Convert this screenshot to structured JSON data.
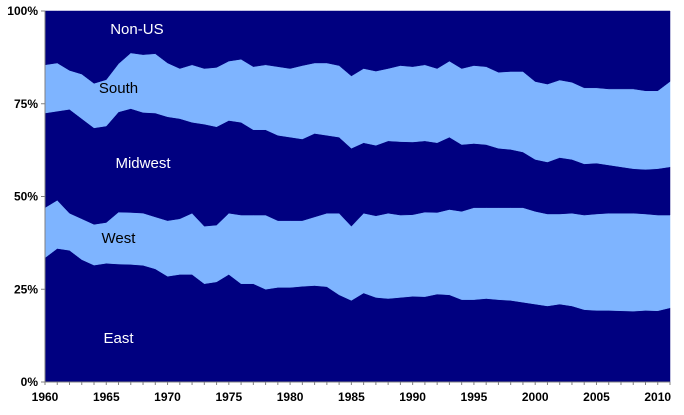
{
  "chart_data": {
    "type": "area",
    "stacked": true,
    "normalized_percent": true,
    "title": "",
    "xlabel": "",
    "ylabel": "",
    "x": [
      1960,
      1961,
      1962,
      1963,
      1964,
      1965,
      1966,
      1967,
      1968,
      1969,
      1970,
      1971,
      1972,
      1973,
      1974,
      1975,
      1976,
      1977,
      1978,
      1979,
      1980,
      1981,
      1982,
      1983,
      1984,
      1985,
      1986,
      1987,
      1988,
      1989,
      1990,
      1991,
      1992,
      1993,
      1994,
      1995,
      1996,
      1997,
      1998,
      1999,
      2000,
      2001,
      2002,
      2003,
      2004,
      2005,
      2006,
      2007,
      2008,
      2009,
      2010,
      2011
    ],
    "xlim": [
      1960,
      2011
    ],
    "ylim": [
      0,
      100
    ],
    "x_ticks": [
      "1960",
      "1965",
      "1970",
      "1975",
      "1980",
      "1985",
      "1990",
      "1995",
      "2000",
      "2005",
      "2010"
    ],
    "y_ticks": [
      "0%",
      "25%",
      "50%",
      "75%",
      "100%"
    ],
    "grid": false,
    "legend": "none",
    "series": [
      {
        "name": "East",
        "color": "#000080",
        "label_color": "#ffffff",
        "values": [
          33.5,
          36,
          35.5,
          33,
          31.5,
          32,
          31.8,
          31.7,
          31.3,
          30.5,
          28.5,
          29,
          29,
          26.5,
          27,
          29,
          26.5,
          26.5,
          25,
          25.5,
          25.5,
          25.8,
          26,
          25.7,
          23.5,
          22,
          24,
          22.8,
          22.5,
          22.8,
          23.1,
          23,
          23.7,
          23.5,
          22.2,
          22.2,
          22.5,
          22.2,
          22,
          21.5,
          21,
          20.5,
          21,
          20.5,
          19.5,
          19.3,
          19.3,
          19.2,
          19.1,
          19.3,
          19.2,
          20
        ]
      },
      {
        "name": "West",
        "color": "#7eb4ff",
        "label_color": "#000000",
        "values": [
          13.5,
          13,
          10,
          11,
          11,
          11,
          14,
          14,
          14,
          14,
          15,
          15,
          16.5,
          15.5,
          15.3,
          16.5,
          18.5,
          18.5,
          20,
          18,
          18,
          17.7,
          18.5,
          19.8,
          22,
          20,
          21.5,
          22,
          23,
          22.2,
          22,
          22.8,
          22,
          23,
          23.8,
          24.8,
          24.5,
          24.8,
          25,
          25.5,
          25,
          24.8,
          24.3,
          25,
          25.5,
          26,
          26.2,
          26.3,
          26.4,
          26,
          25.8,
          25
        ]
      },
      {
        "name": "Midwest",
        "color": "#000080",
        "label_color": "#ffffff",
        "values": [
          25.5,
          24,
          28,
          27,
          26,
          26,
          27,
          28,
          27,
          28,
          28,
          27,
          24.5,
          27.5,
          26.5,
          25,
          25,
          23,
          23,
          23,
          22.5,
          22,
          22.5,
          21,
          20.5,
          21,
          19,
          19,
          19.5,
          19.8,
          19.6,
          19.2,
          18.8,
          19.5,
          18,
          17.3,
          17,
          16,
          15.7,
          15,
          14,
          14,
          15.2,
          14.5,
          13.8,
          13.7,
          13,
          12.5,
          12,
          12,
          12.5,
          13
        ]
      },
      {
        "name": "South",
        "color": "#7eb4ff",
        "label_color": "#000000",
        "values": [
          13,
          13,
          10.5,
          12,
          12,
          12.5,
          13,
          15,
          15.5,
          16,
          14.5,
          13.5,
          15.5,
          15,
          16,
          16,
          17,
          17,
          17.5,
          18.5,
          18.5,
          19.8,
          19,
          19.5,
          19.3,
          19.5,
          20,
          20,
          19.5,
          20.5,
          20.3,
          20.5,
          20,
          20.5,
          20.5,
          21,
          21,
          20.5,
          21,
          21.7,
          21,
          21,
          20.9,
          20.8,
          20.5,
          20.3,
          20.5,
          21,
          21.5,
          21.2,
          21,
          23
        ]
      },
      {
        "name": "Non-US",
        "color": "#000080",
        "label_color": "#ffffff",
        "values": [
          14.5,
          14,
          16,
          17,
          19.5,
          18.5,
          14.2,
          11.3,
          11.7,
          11.5,
          14,
          15.5,
          14.5,
          15.5,
          15.2,
          13.5,
          13,
          15,
          14.5,
          15,
          15.5,
          14.7,
          14,
          14,
          14.7,
          17.5,
          15.5,
          16.2,
          15.5,
          14.7,
          15,
          14.5,
          15.5,
          13.5,
          15.5,
          14.7,
          15,
          16.5,
          16.3,
          16.3,
          19,
          19.7,
          18.6,
          19.2,
          20.7,
          20.7,
          21,
          21,
          21,
          21.5,
          21.5,
          19
        ]
      }
    ]
  }
}
